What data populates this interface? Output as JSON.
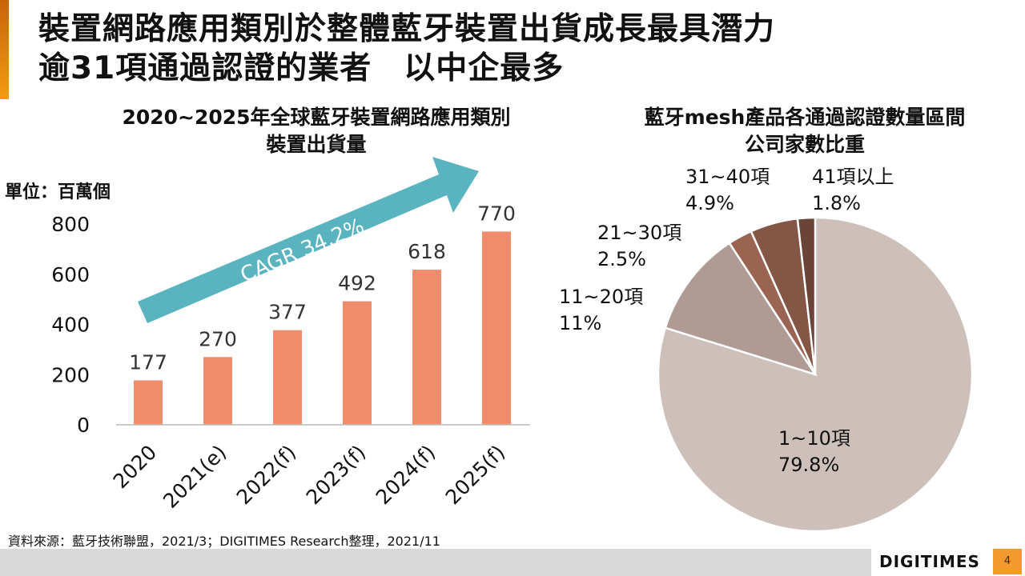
{
  "title": {
    "line1": "裝置網路應用類別於整體藍牙裝置出貨成長最具潛力",
    "line2": "逾31項通過認證的業者　以中企最多"
  },
  "chart_data": [
    {
      "type": "bar",
      "title_line1": "2020~2025年全球藍牙裝置網路應用類別",
      "title_line2": "裝置出貨量",
      "ylabel": "單位：百萬個",
      "categories": [
        "2020",
        "2021(e)",
        "2022(f)",
        "2023(f)",
        "2024(f)",
        "2025(f)"
      ],
      "values": [
        177,
        270,
        377,
        492,
        618,
        770
      ],
      "ylim": [
        0,
        800
      ],
      "yticks": [
        0,
        200,
        400,
        600,
        800
      ],
      "annotation": "CAGR 34.2%",
      "bar_color": "#ef8c6c",
      "arrow_color": "#5ab4bf"
    },
    {
      "type": "pie",
      "title_line1": "藍牙mesh產品各通過認證數量區間",
      "title_line2": "公司家數比重",
      "slices": [
        {
          "label": "1~10項",
          "value": 79.8,
          "text": "79.8%",
          "color": "#cdbfb9"
        },
        {
          "label": "11~20項",
          "value": 11,
          "text": "11%",
          "color": "#b09a94"
        },
        {
          "label": "21~30項",
          "value": 2.5,
          "text": "2.5%",
          "color": "#9b6452"
        },
        {
          "label": "31~40項",
          "value": 4.9,
          "text": "4.9%",
          "color": "#845646"
        },
        {
          "label": "41項以上",
          "value": 1.8,
          "text": "1.8%",
          "color": "#6b4438"
        }
      ]
    }
  ],
  "source": "資料來源：藍牙技術聯盟，2021/3；DIGITIMES Research整理，2021/11",
  "logo": "DIGITIMES",
  "page_number": "4"
}
